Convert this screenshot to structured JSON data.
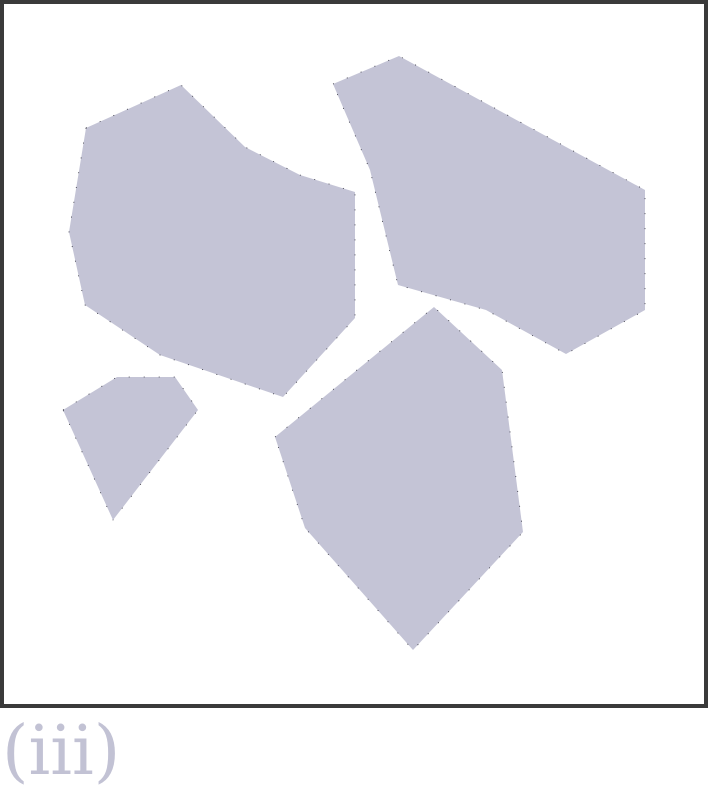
{
  "figure": {
    "panel_label": "(iii)",
    "shape_fill": "#c4c4d6",
    "shape_stroke": "#2e2e3a",
    "border_color": "#3a3a3a",
    "label_color": "#c2c2d4",
    "shape_count": 4
  }
}
